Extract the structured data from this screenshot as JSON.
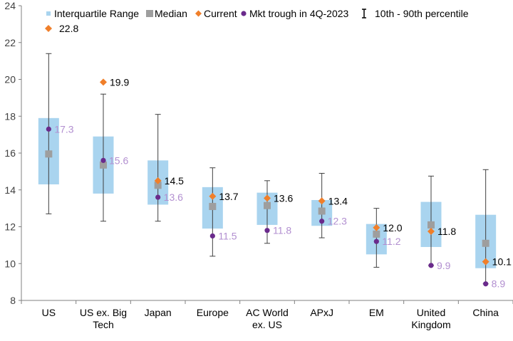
{
  "chart_data": {
    "type": "box",
    "ylim": [
      8,
      24
    ],
    "yticks": [
      8,
      10,
      12,
      14,
      16,
      18,
      20,
      22,
      24
    ],
    "gridlines": false,
    "colors": {
      "iqr": "#a9d4ef",
      "median": "#9e9e9e",
      "current": "#f07f2a",
      "trough": "#6a2a8c",
      "trough_label": "#b28fd0",
      "whisker": "#404040",
      "axis": "#808080"
    },
    "legend": {
      "items": [
        {
          "key": "iqr",
          "label": "Interquartile Range"
        },
        {
          "key": "median",
          "label": "Median"
        },
        {
          "key": "current",
          "label": "Current"
        },
        {
          "key": "trough",
          "label": "Mkt trough in 4Q-2023"
        },
        {
          "key": "whisker",
          "label": "10th - 90th percentile"
        }
      ],
      "extra": {
        "key": "current",
        "label": "22.8"
      }
    },
    "categories": [
      {
        "label": [
          "US"
        ],
        "p10": 12.7,
        "p90": 21.4,
        "q1": 14.3,
        "q3": 17.9,
        "median": 15.95,
        "current": 22.8,
        "current_label": "22.8",
        "current_shown": false,
        "trough": 17.3,
        "trough_label": "17.3"
      },
      {
        "label": [
          "US ex. Big",
          "Tech"
        ],
        "p10": 12.3,
        "p90": 19.2,
        "q1": 13.8,
        "q3": 16.9,
        "median": 15.35,
        "current": 19.85,
        "current_label": "19.9",
        "current_shown": true,
        "trough": 15.6,
        "trough_label": "15.6"
      },
      {
        "label": [
          "Japan"
        ],
        "p10": 12.3,
        "p90": 18.1,
        "q1": 13.2,
        "q3": 15.6,
        "median": 14.25,
        "current": 14.5,
        "current_label": "14.5",
        "current_shown": true,
        "trough": 13.6,
        "trough_label": "13.6"
      },
      {
        "label": [
          "Europe"
        ],
        "p10": 10.4,
        "p90": 15.2,
        "q1": 11.9,
        "q3": 14.15,
        "median": 13.1,
        "current": 13.65,
        "current_label": "13.7",
        "current_shown": true,
        "trough": 11.5,
        "trough_label": "11.5"
      },
      {
        "label": [
          "AC World",
          "ex. US"
        ],
        "p10": 11.1,
        "p90": 14.5,
        "q1": 12.1,
        "q3": 13.85,
        "median": 13.15,
        "current": 13.55,
        "current_label": "13.6",
        "current_shown": true,
        "trough": 11.8,
        "trough_label": "11.8"
      },
      {
        "label": [
          "APxJ"
        ],
        "p10": 11.4,
        "p90": 14.9,
        "q1": 12.05,
        "q3": 13.45,
        "median": 12.85,
        "current": 13.4,
        "current_label": "13.4",
        "current_shown": true,
        "trough": 12.3,
        "trough_label": "12.3"
      },
      {
        "label": [
          "EM"
        ],
        "p10": 9.8,
        "p90": 13.0,
        "q1": 10.5,
        "q3": 12.15,
        "median": 11.6,
        "current": 11.95,
        "current_label": "12.0",
        "current_shown": true,
        "trough": 11.2,
        "trough_label": "11.2"
      },
      {
        "label": [
          "United",
          "Kingdom"
        ],
        "p10": 9.9,
        "p90": 14.75,
        "q1": 10.9,
        "q3": 13.35,
        "median": 12.1,
        "current": 11.75,
        "current_label": "11.8",
        "current_shown": true,
        "trough": 9.9,
        "trough_label": "9.9"
      },
      {
        "label": [
          "China"
        ],
        "p10": 8.9,
        "p90": 15.1,
        "q1": 9.75,
        "q3": 12.65,
        "median": 11.1,
        "current": 10.1,
        "current_label": "10.1",
        "current_shown": true,
        "trough": 8.9,
        "trough_label": "8.9"
      }
    ]
  }
}
